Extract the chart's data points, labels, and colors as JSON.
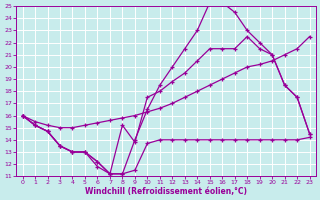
{
  "xlabel": "Windchill (Refroidissement éolien,°C)",
  "bg_color": "#c8ecec",
  "grid_color": "#ffffff",
  "line_color": "#990099",
  "xlim": [
    -0.5,
    23.5
  ],
  "ylim": [
    11,
    25
  ],
  "yticks": [
    11,
    12,
    13,
    14,
    15,
    16,
    17,
    18,
    19,
    20,
    21,
    22,
    23,
    24,
    25
  ],
  "xticks": [
    0,
    1,
    2,
    3,
    4,
    5,
    6,
    7,
    8,
    9,
    10,
    11,
    12,
    13,
    14,
    15,
    16,
    17,
    18,
    19,
    20,
    21,
    22,
    23
  ],
  "line1_x": [
    0,
    1,
    2,
    3,
    4,
    5,
    6,
    7,
    8,
    9,
    10,
    11,
    12,
    13,
    14,
    15,
    16,
    17,
    18,
    19,
    20,
    21,
    22,
    23
  ],
  "line1_y": [
    16.0,
    15.2,
    14.7,
    13.5,
    13.0,
    13.0,
    11.8,
    11.2,
    11.2,
    11.5,
    13.7,
    14.0,
    14.0,
    14.0,
    14.0,
    14.0,
    14.0,
    14.0,
    14.0,
    14.0,
    14.0,
    14.0,
    14.0,
    14.2
  ],
  "line2_x": [
    0,
    1,
    2,
    3,
    4,
    5,
    6,
    7,
    8,
    9,
    10,
    11,
    12,
    13,
    14,
    15,
    16,
    17,
    18,
    19,
    20,
    21,
    22,
    23
  ],
  "line2_y": [
    16.0,
    15.2,
    14.7,
    13.5,
    13.0,
    13.0,
    12.2,
    11.2,
    15.2,
    13.8,
    17.5,
    18.0,
    18.8,
    19.5,
    20.5,
    21.5,
    21.5,
    21.5,
    22.5,
    21.5,
    21.0,
    18.5,
    17.5,
    14.5
  ],
  "line3_x": [
    0,
    1,
    2,
    3,
    4,
    5,
    6,
    7,
    8,
    9,
    10,
    11,
    12,
    13,
    14,
    15,
    16,
    17,
    18,
    19,
    20,
    21,
    22,
    23
  ],
  "line3_y": [
    16.0,
    15.5,
    15.2,
    15.0,
    15.0,
    15.2,
    15.4,
    15.6,
    15.8,
    16.0,
    16.3,
    16.6,
    17.0,
    17.5,
    18.0,
    18.5,
    19.0,
    19.5,
    20.0,
    20.2,
    20.5,
    21.0,
    21.5,
    22.5
  ],
  "line4_x": [
    0,
    1,
    2,
    3,
    4,
    5,
    6,
    7,
    8,
    9,
    10,
    11,
    12,
    13,
    14,
    15,
    16,
    17,
    18,
    19,
    20,
    21,
    22,
    23
  ],
  "line4_y": [
    16.0,
    15.2,
    14.7,
    13.5,
    13.0,
    13.0,
    12.2,
    11.2,
    11.2,
    14.0,
    16.5,
    18.5,
    20.0,
    21.5,
    23.0,
    25.3,
    25.3,
    24.5,
    23.0,
    22.0,
    21.0,
    18.5,
    17.5,
    14.5
  ],
  "marker": "+"
}
